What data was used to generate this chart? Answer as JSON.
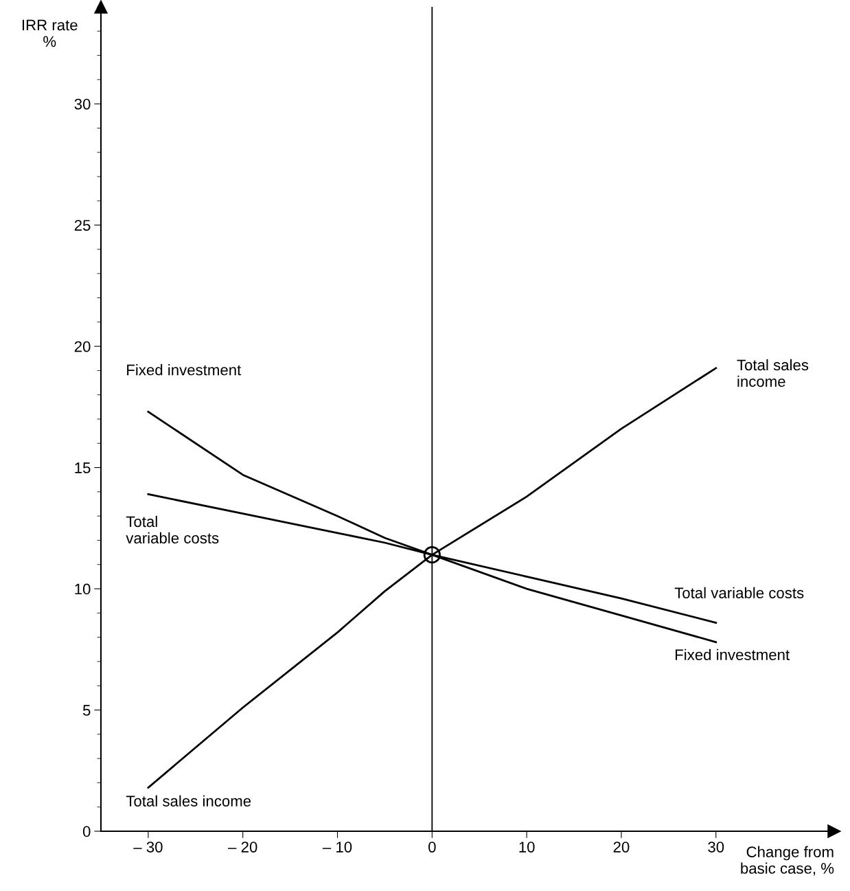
{
  "chart_data": {
    "type": "line",
    "xlabel": "Change from\nbasic case, %",
    "ylabel": "IRR rate\n%",
    "x": [
      -30,
      -20,
      -10,
      -5,
      0,
      10,
      20,
      30
    ],
    "series": [
      {
        "color": "#000000",
        "values": [
          1.8,
          5.1,
          8.2,
          9.9,
          11.4,
          13.8,
          16.6,
          19.1
        ]
      },
      {
        "color": "#000000",
        "values": [
          17.3,
          14.7,
          13.0,
          12.1,
          11.4,
          10.0,
          8.9,
          7.8
        ]
      },
      {
        "color": "#000000",
        "values": [
          13.9,
          13.1,
          12.3,
          11.9,
          11.4,
          10.5,
          9.6,
          8.6
        ]
      },
      {
        "type": "scatter",
        "marker": "circle",
        "color": "#000000",
        "x": [
          0
        ],
        "values": [
          11.4
        ]
      }
    ],
    "xlim": [
      -35,
      42.5
    ],
    "ylim": [
      0,
      34
    ],
    "xticks": [
      {
        "value": -30,
        "label": "– 30"
      },
      {
        "value": -20,
        "label": "– 20"
      },
      {
        "value": -10,
        "label": "– 10"
      },
      0,
      10,
      20,
      30
    ],
    "yticks": [
      0,
      5,
      10,
      15,
      20,
      25,
      30
    ],
    "ref_lines": [
      {
        "axis": "x",
        "value": 0,
        "color": "#000000"
      }
    ],
    "annotations": [
      "Fixed investment",
      "Total\nvariable costs",
      "Total sales income",
      "Total sales\nincome",
      "Total variable costs",
      "Fixed investment"
    ],
    "grid": false,
    "legend": false,
    "line_style": "solid",
    "marker": "none"
  }
}
